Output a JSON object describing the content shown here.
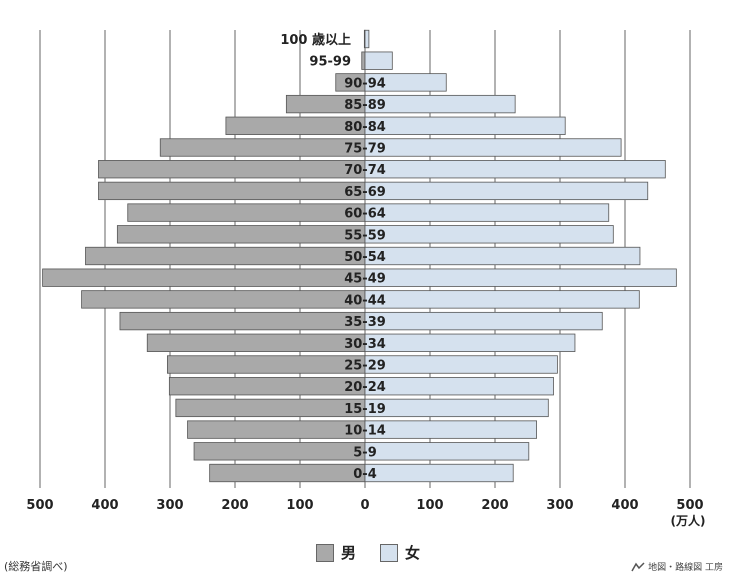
{
  "chart_data": {
    "type": "bar",
    "orientation": "horizontal-population-pyramid",
    "categories": [
      "0-4",
      "5-9",
      "10-14",
      "15-19",
      "20-24",
      "25-29",
      "30-34",
      "35-39",
      "40-44",
      "45-49",
      "50-54",
      "55-59",
      "60-64",
      "65-69",
      "70-74",
      "75-79",
      "80-84",
      "85-89",
      "90-94",
      "95-99",
      "100 歳以上"
    ],
    "series": [
      {
        "name": "男",
        "color": "#a9a9a9",
        "values": [
          239,
          263,
          273,
          291,
          301,
          304,
          335,
          377,
          436,
          496,
          430,
          381,
          365,
          410,
          410,
          315,
          214,
          121,
          45,
          5,
          1
        ]
      },
      {
        "name": "女",
        "color": "#d5e1ee",
        "values": [
          228,
          252,
          264,
          282,
          290,
          296,
          323,
          365,
          422,
          479,
          423,
          382,
          375,
          435,
          462,
          394,
          308,
          231,
          125,
          42,
          6
        ]
      }
    ],
    "xticks": [
      "500",
      "400",
      "300",
      "200",
      "100",
      "0",
      "100",
      "200",
      "300",
      "400",
      "500"
    ],
    "xunit": "(万人)",
    "xlim": [
      -500,
      500
    ],
    "grid": true,
    "legend": "bottom-center"
  },
  "source_note": "(総務省調べ)",
  "credit": "地図・路線図 工房"
}
